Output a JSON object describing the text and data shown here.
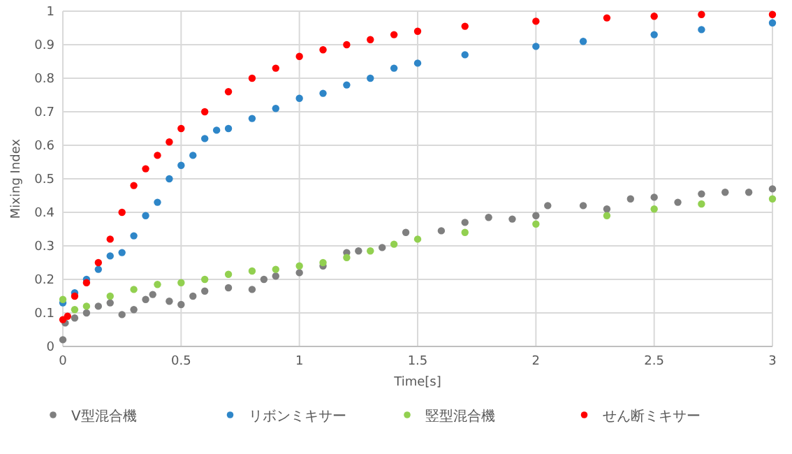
{
  "chart_data": {
    "type": "scatter",
    "xlabel": "Time[s]",
    "ylabel": "Mixing Index",
    "xlim": [
      0,
      3
    ],
    "xticks": [
      0,
      0.5,
      1,
      1.5,
      2,
      2.5,
      3
    ],
    "ylim": [
      0,
      1
    ],
    "yticks": [
      0,
      0.1,
      0.2,
      0.3,
      0.4,
      0.5,
      0.6,
      0.7,
      0.8,
      0.9,
      1
    ],
    "grid": true,
    "legend": "bottom",
    "marker": "circle",
    "series": [
      {
        "name": "V型混合機",
        "color": "#7f7f7f",
        "x": [
          0,
          0.01,
          0.05,
          0.1,
          0.15,
          0.2,
          0.25,
          0.3,
          0.35,
          0.38,
          0.45,
          0.5,
          0.55,
          0.6,
          0.7,
          0.8,
          0.85,
          0.9,
          1.0,
          1.1,
          1.2,
          1.25,
          1.35,
          1.45,
          1.6,
          1.7,
          1.8,
          1.9,
          2.0,
          2.05,
          2.2,
          2.3,
          2.4,
          2.5,
          2.6,
          2.7,
          2.8,
          2.9,
          3.0
        ],
        "values": [
          0.02,
          0.07,
          0.085,
          0.1,
          0.12,
          0.13,
          0.095,
          0.11,
          0.14,
          0.155,
          0.135,
          0.125,
          0.15,
          0.165,
          0.175,
          0.17,
          0.2,
          0.21,
          0.22,
          0.24,
          0.28,
          0.285,
          0.295,
          0.34,
          0.345,
          0.37,
          0.385,
          0.38,
          0.39,
          0.42,
          0.42,
          0.41,
          0.44,
          0.445,
          0.43,
          0.455,
          0.46,
          0.46,
          0.47
        ]
      },
      {
        "name": "リボンミキサー",
        "color": "#2e86c8",
        "x": [
          0,
          0.05,
          0.1,
          0.15,
          0.2,
          0.25,
          0.3,
          0.35,
          0.4,
          0.45,
          0.5,
          0.55,
          0.6,
          0.65,
          0.7,
          0.8,
          0.9,
          1.0,
          1.1,
          1.2,
          1.3,
          1.4,
          1.5,
          1.7,
          2.0,
          2.2,
          2.5,
          2.7,
          3.0
        ],
        "values": [
          0.13,
          0.16,
          0.2,
          0.23,
          0.27,
          0.28,
          0.33,
          0.39,
          0.43,
          0.5,
          0.54,
          0.57,
          0.62,
          0.645,
          0.65,
          0.68,
          0.71,
          0.74,
          0.755,
          0.78,
          0.8,
          0.83,
          0.845,
          0.87,
          0.895,
          0.91,
          0.93,
          0.945,
          0.965
        ]
      },
      {
        "name": "竪型混合機",
        "color": "#92d050",
        "x": [
          0,
          0.05,
          0.1,
          0.2,
          0.3,
          0.4,
          0.5,
          0.6,
          0.7,
          0.8,
          0.9,
          1.0,
          1.1,
          1.2,
          1.3,
          1.4,
          1.5,
          1.7,
          2.0,
          2.3,
          2.5,
          2.7,
          3.0
        ],
        "values": [
          0.14,
          0.11,
          0.12,
          0.15,
          0.17,
          0.185,
          0.19,
          0.2,
          0.215,
          0.225,
          0.23,
          0.24,
          0.25,
          0.265,
          0.285,
          0.305,
          0.32,
          0.34,
          0.365,
          0.39,
          0.41,
          0.425,
          0.44
        ]
      },
      {
        "name": "せん断ミキサー",
        "color": "#ff0000",
        "x": [
          0,
          0.02,
          0.05,
          0.1,
          0.15,
          0.2,
          0.25,
          0.3,
          0.35,
          0.4,
          0.45,
          0.5,
          0.6,
          0.7,
          0.8,
          0.9,
          1.0,
          1.1,
          1.2,
          1.3,
          1.4,
          1.5,
          1.7,
          2.0,
          2.3,
          2.5,
          2.7,
          3.0
        ],
        "values": [
          0.08,
          0.09,
          0.15,
          0.19,
          0.25,
          0.32,
          0.4,
          0.48,
          0.53,
          0.57,
          0.61,
          0.65,
          0.7,
          0.76,
          0.8,
          0.83,
          0.865,
          0.885,
          0.9,
          0.915,
          0.93,
          0.94,
          0.955,
          0.97,
          0.98,
          0.985,
          0.99,
          0.99
        ]
      }
    ]
  }
}
